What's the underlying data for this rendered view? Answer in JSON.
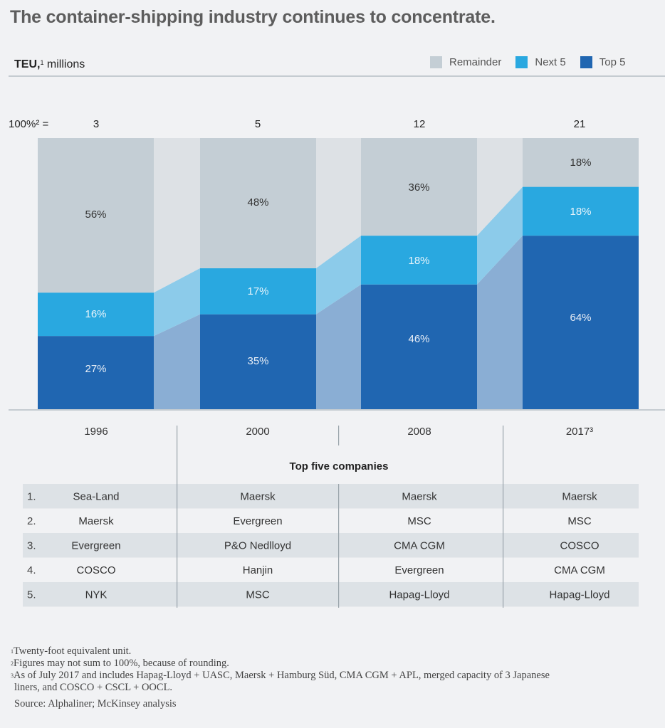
{
  "title": "The container-shipping industry continues to concentrate.",
  "unit_label": {
    "bold": "TEU,",
    "sup": "1",
    "rest": "millions"
  },
  "legend": [
    {
      "label": "Remainder",
      "color": "#c4ced5"
    },
    {
      "label": "Next 5",
      "color": "#29a8e0"
    },
    {
      "label": "Top 5",
      "color": "#2066b1"
    }
  ],
  "chart_data": {
    "type": "bar",
    "subtype": "stacked-100-percent",
    "title": "The container-shipping industry continues to concentrate.",
    "ylabel": "TEU, millions",
    "total_label": "100%² =",
    "categories": [
      "1996",
      "2000",
      "2008",
      "2017³"
    ],
    "totals": [
      3,
      5,
      12,
      21
    ],
    "series": [
      {
        "name": "Top 5",
        "values": [
          27,
          35,
          46,
          64
        ],
        "color": "#2066b1",
        "label_color": "#e8eef6"
      },
      {
        "name": "Next 5",
        "values": [
          16,
          17,
          18,
          18
        ],
        "color": "#29a8e0",
        "label_color": "#e8f4fb"
      },
      {
        "name": "Remainder",
        "values": [
          56,
          48,
          36,
          18
        ],
        "color": "#c4ced5",
        "label_color": "#333333"
      }
    ],
    "ylim": [
      0,
      100
    ],
    "grid": false,
    "legend_position": "top-right",
    "connector_colors": {
      "Top 5": "#8aaed4",
      "Next 5": "#8ccbea",
      "Remainder": "#dde1e5"
    }
  },
  "table": {
    "heading": "Top five companies",
    "ranks": [
      "1.",
      "2.",
      "3.",
      "4.",
      "5."
    ],
    "columns": [
      {
        "year": "1996",
        "companies": [
          "Sea-Land",
          "Maersk",
          "Evergreen",
          "COSCO",
          "NYK"
        ]
      },
      {
        "year": "2000",
        "companies": [
          "Maersk",
          "Evergreen",
          "P&O Nedlloyd",
          "Hanjin",
          "MSC"
        ]
      },
      {
        "year": "2008",
        "companies": [
          "Maersk",
          "MSC",
          "CMA CGM",
          "Evergreen",
          "Hapag-Lloyd"
        ]
      },
      {
        "year": "2017³",
        "companies": [
          "Maersk",
          "MSC",
          "COSCO",
          "CMA CGM",
          "Hapag-Lloyd"
        ]
      }
    ]
  },
  "footnotes": [
    {
      "mark": "1",
      "text": "Twenty-foot equivalent unit."
    },
    {
      "mark": "2",
      "text": "Figures may not sum to 100%, because of rounding."
    },
    {
      "mark": "3",
      "text": "As of July 2017 and includes Hapag-Lloyd + UASC, Maersk + Hamburg Süd, CMA CGM + APL, merged capacity of 3 Japanese",
      "cont": "liners, and COSCO + CSCL + OOCL."
    }
  ],
  "source": "Source: Alphaliner; McKinsey analysis"
}
